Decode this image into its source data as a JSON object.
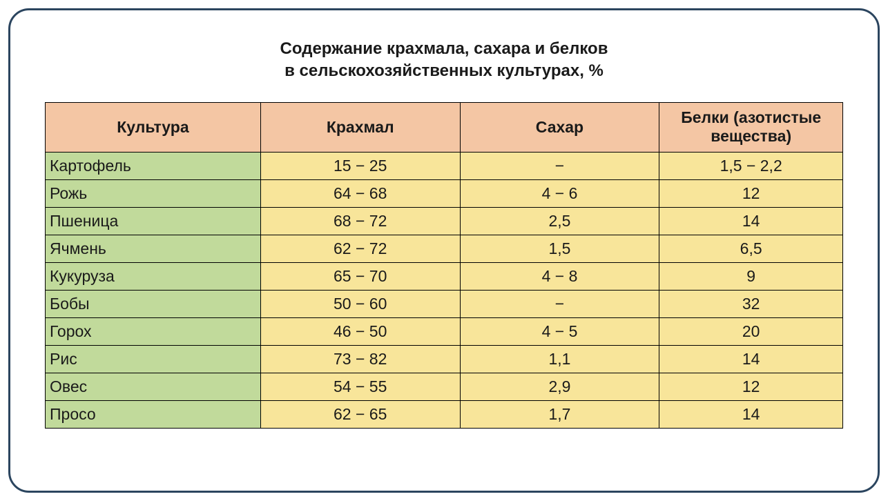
{
  "title": {
    "line1": "Содержание крахмала, сахара и белков",
    "line2": "в сельскохозяйственных культурах, %"
  },
  "table": {
    "columns": [
      "Культура",
      "Крахмал",
      "Сахар",
      "Белки (азотистые вещества)"
    ],
    "rows": [
      [
        "Картофель",
        "15 − 25",
        "−",
        "1,5 − 2,2"
      ],
      [
        "Рожь",
        "64 − 68",
        "4 − 6",
        "12"
      ],
      [
        "Пшеница",
        "68 − 72",
        "2,5",
        "14"
      ],
      [
        "Ячмень",
        "62 − 72",
        "1,5",
        "6,5"
      ],
      [
        "Кукуруза",
        "65 − 70",
        "4 − 8",
        "9"
      ],
      [
        "Бобы",
        "50 − 60",
        "−",
        "32"
      ],
      [
        "Горох",
        "46 − 50",
        "4 − 5",
        "20"
      ],
      [
        "Рис",
        "73 − 82",
        "1,1",
        "14"
      ],
      [
        "Овес",
        "54 − 55",
        "2,9",
        "12"
      ],
      [
        "Просо",
        "62 − 65",
        "1,7",
        "14"
      ]
    ],
    "header_bg": "#f4c6a4",
    "culture_col_bg": "#c1da9b",
    "data_cell_bg": "#f8e59a",
    "border_color": "#000000",
    "frame_border_color": "#2b455f",
    "title_fontsize": 24,
    "cell_fontsize": 23
  }
}
